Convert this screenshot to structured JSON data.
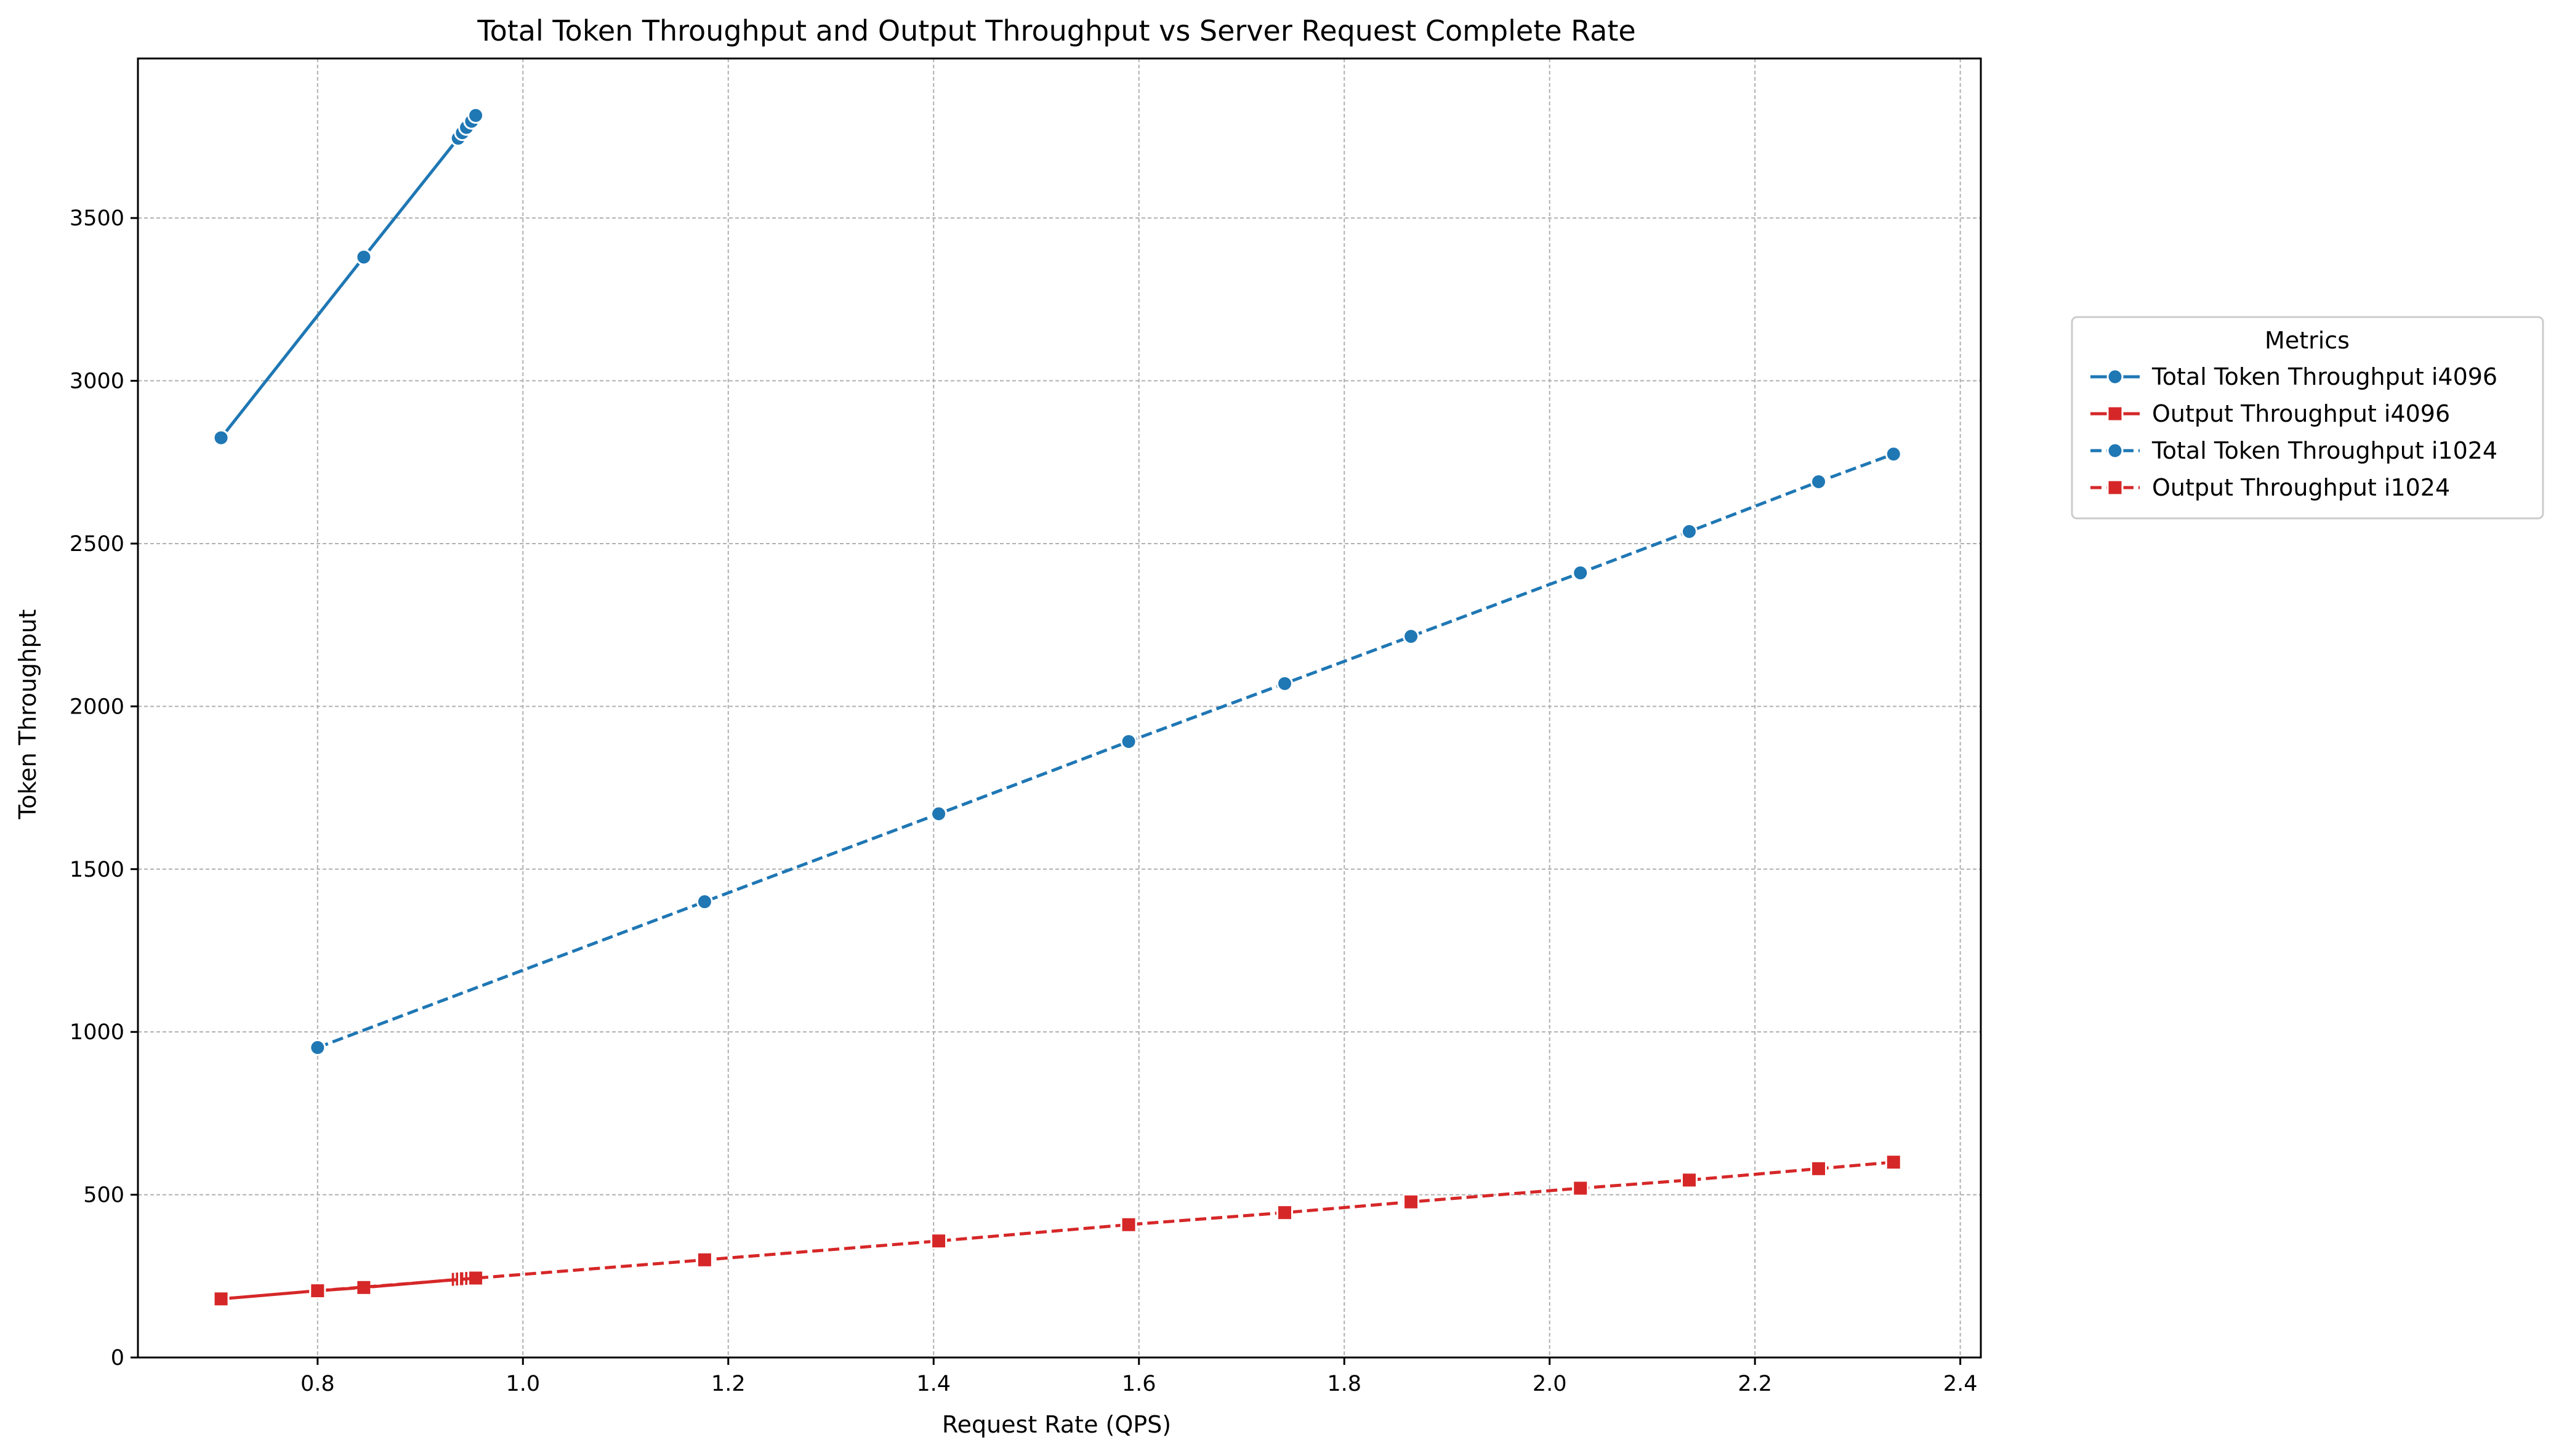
{
  "chart_data": {
    "type": "line",
    "title": "Total Token Throughput and Output Throughput vs Server Request Complete Rate",
    "xlabel": "Request Rate (QPS)",
    "ylabel": "Token Throughput",
    "xlim": [
      0.625,
      2.42
    ],
    "ylim": [
      0,
      3990
    ],
    "xticks": [
      "0.8",
      "1.0",
      "1.2",
      "1.4",
      "1.6",
      "1.8",
      "2.0",
      "2.2",
      "2.4"
    ],
    "xtick_values": [
      0.8,
      1.0,
      1.2,
      1.4,
      1.6,
      1.8,
      2.0,
      2.2,
      2.4
    ],
    "yticks": [
      "0",
      "500",
      "1000",
      "1500",
      "2000",
      "2500",
      "3000",
      "3500"
    ],
    "ytick_values": [
      0,
      500,
      1000,
      1500,
      2000,
      2500,
      3000,
      3500
    ],
    "grid": true,
    "legend": {
      "title": "Metrics",
      "placement": "right, outside plot"
    },
    "colors": {
      "blue": "#1f77b4",
      "red": "#d62728"
    },
    "series": [
      {
        "name": "Total Token Throughput i4096",
        "color": "#1f77b4",
        "linestyle": "solid",
        "marker": "circle",
        "x": [
          0.706,
          0.845,
          0.937,
          0.941,
          0.945,
          0.95,
          0.954
        ],
        "y": [
          2825,
          3380,
          3745,
          3762,
          3778,
          3797,
          3815
        ]
      },
      {
        "name": "Output Throughput i4096",
        "color": "#d62728",
        "linestyle": "solid",
        "marker": "square",
        "x": [
          0.706,
          0.8,
          0.845,
          0.937,
          0.941,
          0.945,
          0.95,
          0.954
        ],
        "y": [
          180,
          205,
          215,
          240,
          241,
          242,
          243,
          244
        ]
      },
      {
        "name": "Total Token Throughput i1024",
        "color": "#1f77b4",
        "linestyle": "dashed",
        "marker": "circle",
        "x": [
          0.8,
          1.177,
          1.405,
          1.59,
          1.742,
          1.865,
          2.03,
          2.136,
          2.262,
          2.335
        ],
        "y": [
          952,
          1400,
          1670,
          1892,
          2070,
          2215,
          2410,
          2537,
          2690,
          2775
        ]
      },
      {
        "name": "Output Throughput i1024",
        "color": "#d62728",
        "linestyle": "dashed",
        "marker": "square",
        "x": [
          0.8,
          1.177,
          1.405,
          1.59,
          1.742,
          1.865,
          2.03,
          2.136,
          2.262,
          2.335
        ],
        "y": [
          205,
          300,
          358,
          408,
          445,
          478,
          520,
          545,
          580,
          600
        ]
      }
    ]
  }
}
